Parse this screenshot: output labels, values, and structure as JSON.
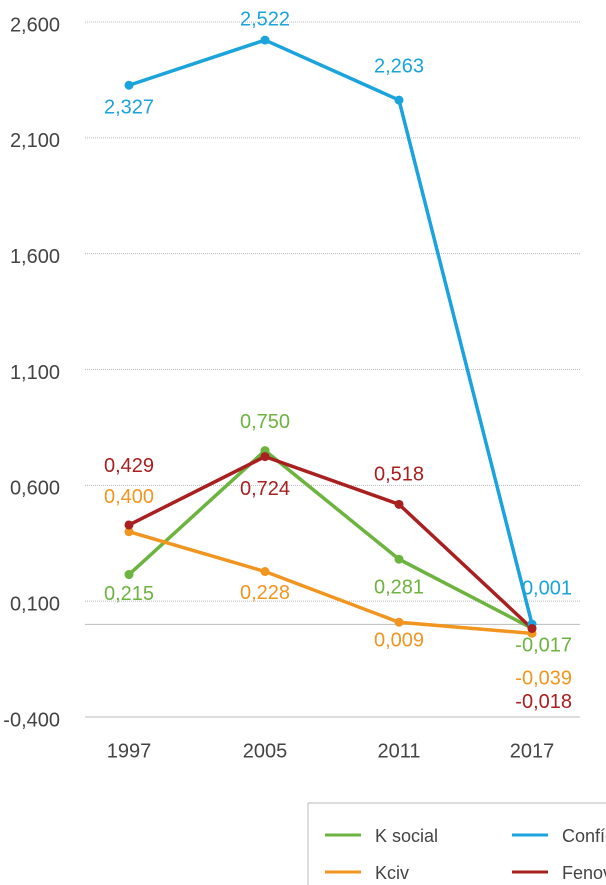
{
  "chart_data": {
    "type": "line",
    "categories": [
      "1997",
      "2005",
      "2011",
      "2017"
    ],
    "series": [
      {
        "name": "K social",
        "color": "#6cb33f",
        "values": [
          0.215,
          0.75,
          0.281,
          -0.017
        ],
        "value_labels": [
          "0,215",
          "0,750",
          "0,281",
          "-0,017"
        ]
      },
      {
        "name": "Confíe",
        "color": "#1aa3dc",
        "values": [
          2.327,
          2.522,
          2.263,
          0.001
        ],
        "value_labels": [
          "2,327",
          "2,522",
          "2,263",
          "0,001"
        ]
      },
      {
        "name": "Kciv",
        "color": "#f0951f",
        "values": [
          0.4,
          0.228,
          0.009,
          -0.039
        ],
        "value_labels": [
          "0,400",
          "0,228",
          "0,009",
          "-0,039"
        ]
      },
      {
        "name": "Fenoval",
        "color": "#a8201f",
        "values": [
          0.429,
          0.724,
          0.518,
          -0.018
        ],
        "value_labels": [
          "0,429",
          "0,724",
          "0,518",
          "-0,018"
        ]
      }
    ],
    "ylim": [
      -0.4,
      2.6
    ],
    "yticks": [
      {
        "value": -0.4,
        "label": "-0,400"
      },
      {
        "value": 0.1,
        "label": "0,100"
      },
      {
        "value": 0.6,
        "label": "0,600"
      },
      {
        "value": 1.1,
        "label": "1,100"
      },
      {
        "value": 1.6,
        "label": "1,600"
      },
      {
        "value": 2.1,
        "label": "2,100"
      },
      {
        "value": 2.6,
        "label": "2,600"
      }
    ],
    "grid": true
  }
}
